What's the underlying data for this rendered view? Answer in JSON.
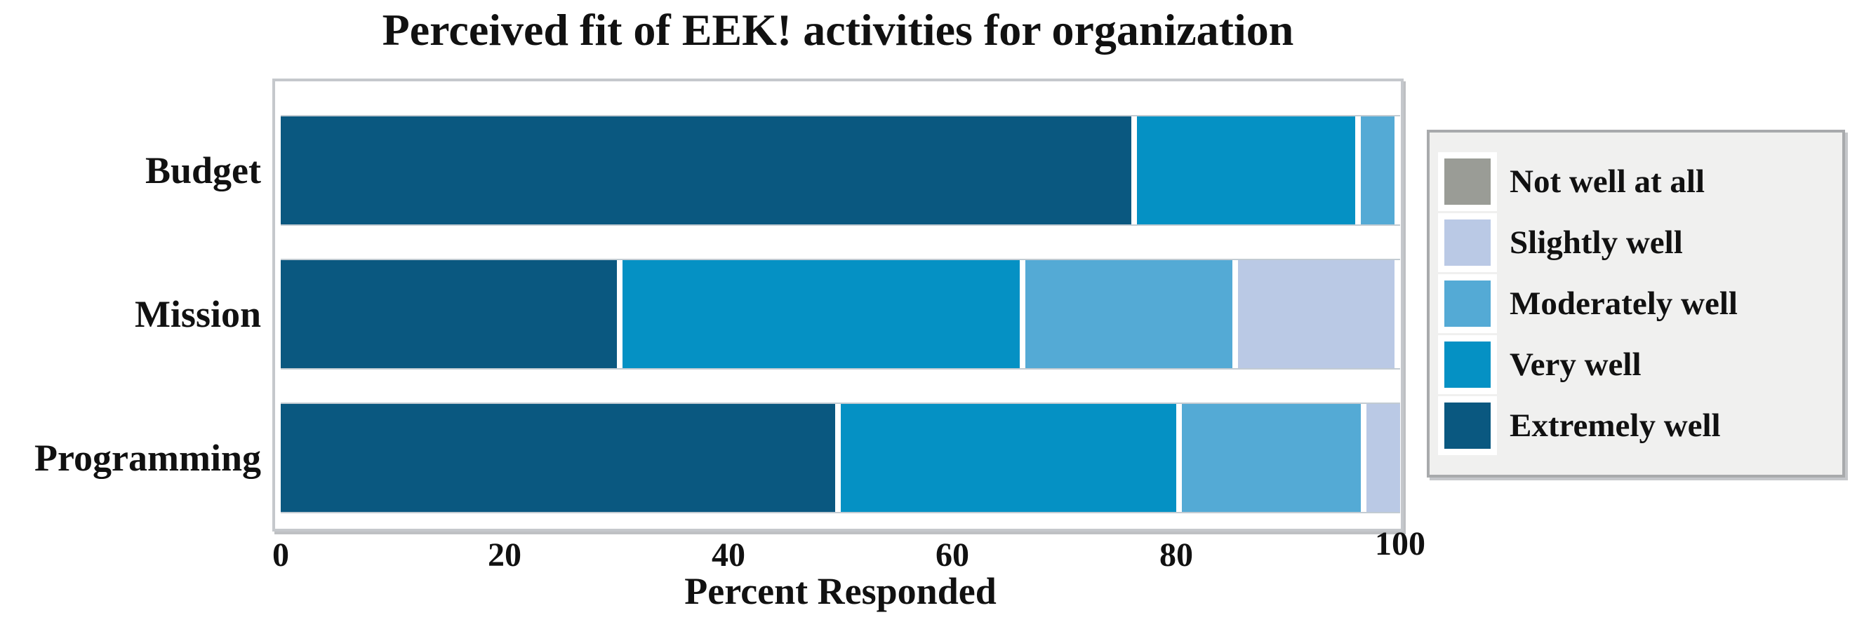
{
  "chart_data": {
    "type": "bar",
    "orientation": "horizontal",
    "stacked": true,
    "title": "Perceived fit of EEK! activities for organization",
    "xlabel": "Percent Responded",
    "ylabel": "",
    "xlim": [
      0,
      100
    ],
    "x_ticks": [
      0,
      20,
      40,
      60,
      80,
      100
    ],
    "grid": false,
    "legend_position": "right-outside",
    "categories": [
      "Budget",
      "Mission",
      "Programming"
    ],
    "series": [
      {
        "name": "Extremely well",
        "color": "#0a5880",
        "values": [
          76,
          30,
          49.5
        ]
      },
      {
        "name": "Very well",
        "color": "#0591c4",
        "values": [
          20,
          36,
          30.5
        ]
      },
      {
        "name": "Moderately well",
        "color": "#54aad5",
        "values": [
          3.5,
          19,
          16.5
        ]
      },
      {
        "name": "Slightly well",
        "color": "#bac9e5",
        "values": [
          0,
          14.5,
          3.5
        ]
      },
      {
        "name": "Not well at all",
        "color": "#9a9c96",
        "values": [
          0,
          0,
          0
        ]
      }
    ]
  },
  "legend": {
    "items": [
      {
        "label": "Not well at all",
        "color": "#9a9c96"
      },
      {
        "label": "Slightly well",
        "color": "#bac9e5"
      },
      {
        "label": "Moderately well",
        "color": "#54aad5"
      },
      {
        "label": "Very well",
        "color": "#0591c4"
      },
      {
        "label": "Extremely well",
        "color": "#0a5880"
      }
    ]
  },
  "colors": {
    "panel_border": "#c5c8cc",
    "legend_background": "#f0f0ef",
    "legend_border": "#a8aaac",
    "segment_gap": "#ffffff"
  }
}
